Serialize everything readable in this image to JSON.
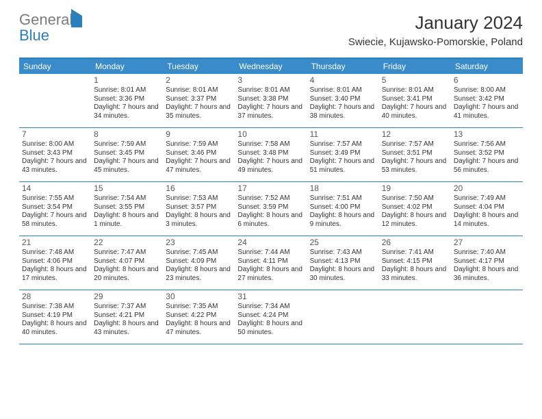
{
  "brand": {
    "text1": "General",
    "text2": "Blue"
  },
  "title": "January 2024",
  "location": "Swiecie, Kujawsko-Pomorskie, Poland",
  "colors": {
    "header_bar": "#3a8bc9",
    "border": "#2b7fba",
    "logo_gray": "#7a7a7a",
    "logo_blue": "#2b7fba",
    "text": "#333333",
    "background": "#ffffff"
  },
  "weekdays": [
    "Sunday",
    "Monday",
    "Tuesday",
    "Wednesday",
    "Thursday",
    "Friday",
    "Saturday"
  ],
  "weeks": [
    [
      null,
      {
        "n": "1",
        "sunrise": "8:01 AM",
        "sunset": "3:36 PM",
        "daylight": "7 hours and 34 minutes."
      },
      {
        "n": "2",
        "sunrise": "8:01 AM",
        "sunset": "3:37 PM",
        "daylight": "7 hours and 35 minutes."
      },
      {
        "n": "3",
        "sunrise": "8:01 AM",
        "sunset": "3:38 PM",
        "daylight": "7 hours and 37 minutes."
      },
      {
        "n": "4",
        "sunrise": "8:01 AM",
        "sunset": "3:40 PM",
        "daylight": "7 hours and 38 minutes."
      },
      {
        "n": "5",
        "sunrise": "8:01 AM",
        "sunset": "3:41 PM",
        "daylight": "7 hours and 40 minutes."
      },
      {
        "n": "6",
        "sunrise": "8:00 AM",
        "sunset": "3:42 PM",
        "daylight": "7 hours and 41 minutes."
      }
    ],
    [
      {
        "n": "7",
        "sunrise": "8:00 AM",
        "sunset": "3:43 PM",
        "daylight": "7 hours and 43 minutes."
      },
      {
        "n": "8",
        "sunrise": "7:59 AM",
        "sunset": "3:45 PM",
        "daylight": "7 hours and 45 minutes."
      },
      {
        "n": "9",
        "sunrise": "7:59 AM",
        "sunset": "3:46 PM",
        "daylight": "7 hours and 47 minutes."
      },
      {
        "n": "10",
        "sunrise": "7:58 AM",
        "sunset": "3:48 PM",
        "daylight": "7 hours and 49 minutes."
      },
      {
        "n": "11",
        "sunrise": "7:57 AM",
        "sunset": "3:49 PM",
        "daylight": "7 hours and 51 minutes."
      },
      {
        "n": "12",
        "sunrise": "7:57 AM",
        "sunset": "3:51 PM",
        "daylight": "7 hours and 53 minutes."
      },
      {
        "n": "13",
        "sunrise": "7:56 AM",
        "sunset": "3:52 PM",
        "daylight": "7 hours and 56 minutes."
      }
    ],
    [
      {
        "n": "14",
        "sunrise": "7:55 AM",
        "sunset": "3:54 PM",
        "daylight": "7 hours and 58 minutes."
      },
      {
        "n": "15",
        "sunrise": "7:54 AM",
        "sunset": "3:55 PM",
        "daylight": "8 hours and 1 minute."
      },
      {
        "n": "16",
        "sunrise": "7:53 AM",
        "sunset": "3:57 PM",
        "daylight": "8 hours and 3 minutes."
      },
      {
        "n": "17",
        "sunrise": "7:52 AM",
        "sunset": "3:59 PM",
        "daylight": "8 hours and 6 minutes."
      },
      {
        "n": "18",
        "sunrise": "7:51 AM",
        "sunset": "4:00 PM",
        "daylight": "8 hours and 9 minutes."
      },
      {
        "n": "19",
        "sunrise": "7:50 AM",
        "sunset": "4:02 PM",
        "daylight": "8 hours and 12 minutes."
      },
      {
        "n": "20",
        "sunrise": "7:49 AM",
        "sunset": "4:04 PM",
        "daylight": "8 hours and 14 minutes."
      }
    ],
    [
      {
        "n": "21",
        "sunrise": "7:48 AM",
        "sunset": "4:06 PM",
        "daylight": "8 hours and 17 minutes."
      },
      {
        "n": "22",
        "sunrise": "7:47 AM",
        "sunset": "4:07 PM",
        "daylight": "8 hours and 20 minutes."
      },
      {
        "n": "23",
        "sunrise": "7:45 AM",
        "sunset": "4:09 PM",
        "daylight": "8 hours and 23 minutes."
      },
      {
        "n": "24",
        "sunrise": "7:44 AM",
        "sunset": "4:11 PM",
        "daylight": "8 hours and 27 minutes."
      },
      {
        "n": "25",
        "sunrise": "7:43 AM",
        "sunset": "4:13 PM",
        "daylight": "8 hours and 30 minutes."
      },
      {
        "n": "26",
        "sunrise": "7:41 AM",
        "sunset": "4:15 PM",
        "daylight": "8 hours and 33 minutes."
      },
      {
        "n": "27",
        "sunrise": "7:40 AM",
        "sunset": "4:17 PM",
        "daylight": "8 hours and 36 minutes."
      }
    ],
    [
      {
        "n": "28",
        "sunrise": "7:38 AM",
        "sunset": "4:19 PM",
        "daylight": "8 hours and 40 minutes."
      },
      {
        "n": "29",
        "sunrise": "7:37 AM",
        "sunset": "4:21 PM",
        "daylight": "8 hours and 43 minutes."
      },
      {
        "n": "30",
        "sunrise": "7:35 AM",
        "sunset": "4:22 PM",
        "daylight": "8 hours and 47 minutes."
      },
      {
        "n": "31",
        "sunrise": "7:34 AM",
        "sunset": "4:24 PM",
        "daylight": "8 hours and 50 minutes."
      },
      null,
      null,
      null
    ]
  ],
  "labels": {
    "sunrise": "Sunrise:",
    "sunset": "Sunset:",
    "daylight": "Daylight:"
  }
}
